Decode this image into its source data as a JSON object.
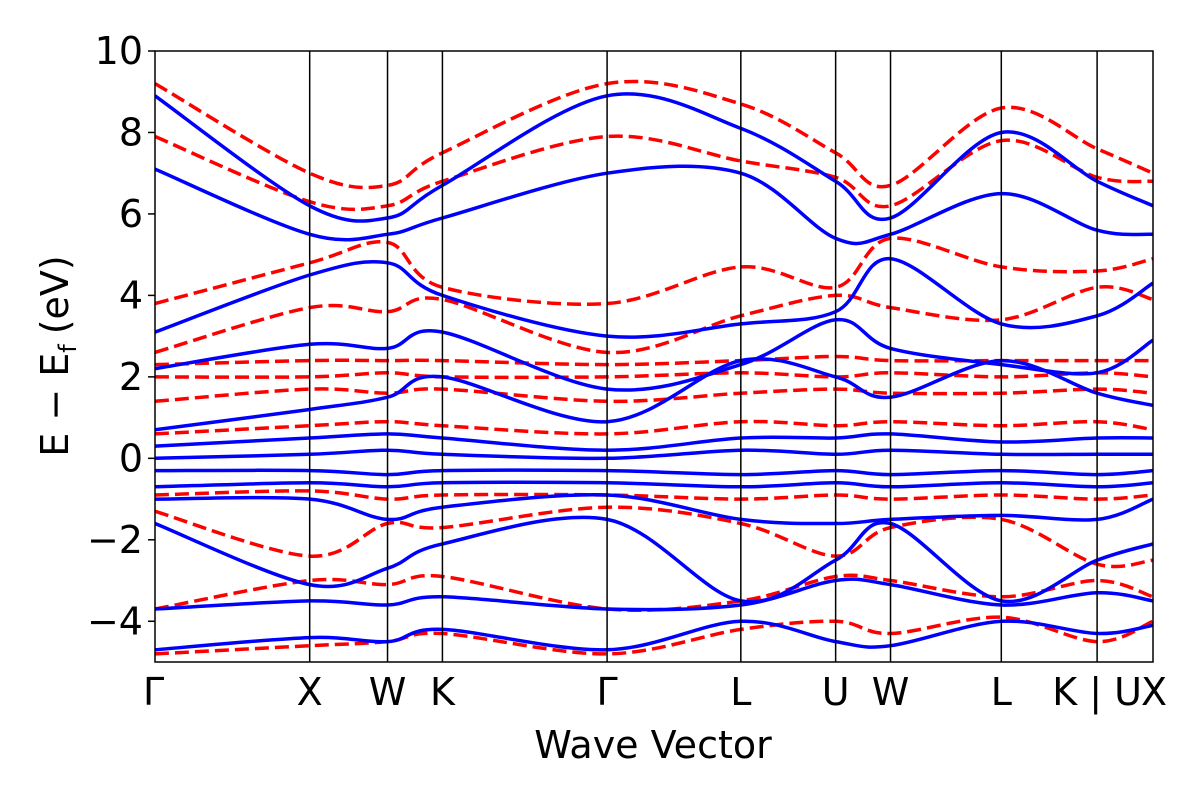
{
  "chart_data": {
    "type": "line",
    "title": "",
    "xlabel": "Wave Vector",
    "ylabel_main": "E − E",
    "ylabel_sub": "f",
    "ylabel_unit": "(eV)",
    "ylim": [
      -5,
      10
    ],
    "yticks": [
      {
        "value": 10,
        "label": "10"
      },
      {
        "value": 8,
        "label": "8"
      },
      {
        "value": 6,
        "label": "6"
      },
      {
        "value": 4,
        "label": "4"
      },
      {
        "value": 2,
        "label": "2"
      },
      {
        "value": 0,
        "label": "0"
      },
      {
        "value": -2,
        "label": "−2"
      },
      {
        "value": -4,
        "label": "−4"
      }
    ],
    "kpoints": [
      {
        "label": "Γ",
        "x": 0.0
      },
      {
        "label": "X",
        "x": 0.155
      },
      {
        "label": "W",
        "x": 0.233
      },
      {
        "label": "K",
        "x": 0.288
      },
      {
        "label": "Γ",
        "x": 0.453
      },
      {
        "label": "L",
        "x": 0.587
      },
      {
        "label": "U",
        "x": 0.682
      },
      {
        "label": "W",
        "x": 0.737
      },
      {
        "label": "L",
        "x": 0.848
      },
      {
        "label": "K | U",
        "x": 0.944
      },
      {
        "label": "X",
        "x": 1.0
      }
    ],
    "series": [
      {
        "style": "solid",
        "color": "#0000ff",
        "bands": [
          {
            "x": [
              0,
              0.155,
              0.233,
              0.288,
              0.453,
              0.587,
              0.682,
              0.737,
              0.848,
              0.944,
              1.0
            ],
            "y": [
              8.9,
              6.2,
              5.9,
              6.7,
              8.9,
              8.1,
              6.8,
              5.9,
              8.0,
              6.8,
              6.2
            ]
          },
          {
            "x": [
              0,
              0.155,
              0.233,
              0.288,
              0.453,
              0.587,
              0.682,
              0.737,
              0.848,
              0.944,
              1.0
            ],
            "y": [
              7.1,
              5.5,
              5.5,
              5.9,
              7.0,
              7.0,
              5.4,
              5.5,
              6.5,
              5.6,
              5.5
            ]
          },
          {
            "x": [
              0,
              0.155,
              0.233,
              0.288,
              0.453,
              0.587,
              0.682,
              0.737,
              0.848,
              0.944,
              1.0
            ],
            "y": [
              3.1,
              4.5,
              4.8,
              4.0,
              3.0,
              3.3,
              3.6,
              4.9,
              3.3,
              3.5,
              4.3
            ]
          },
          {
            "x": [
              0,
              0.155,
              0.233,
              0.288,
              0.453,
              0.587,
              0.682,
              0.737,
              0.848,
              0.944,
              1.0
            ],
            "y": [
              2.2,
              2.8,
              2.7,
              3.1,
              1.7,
              2.3,
              3.4,
              2.7,
              2.3,
              2.1,
              2.9
            ]
          },
          {
            "x": [
              0,
              0.155,
              0.233,
              0.288,
              0.453,
              0.587,
              0.682,
              0.737,
              0.848,
              0.944,
              1.0
            ],
            "y": [
              0.7,
              1.2,
              1.5,
              2.0,
              0.9,
              2.4,
              2.0,
              1.5,
              2.4,
              1.6,
              1.3
            ]
          },
          {
            "x": [
              0,
              0.155,
              0.233,
              0.288,
              0.453,
              0.587,
              0.682,
              0.737,
              0.848,
              0.944,
              1.0
            ],
            "y": [
              0.3,
              0.5,
              0.6,
              0.5,
              0.2,
              0.5,
              0.5,
              0.6,
              0.4,
              0.5,
              0.5
            ]
          },
          {
            "x": [
              0,
              0.155,
              0.233,
              0.288,
              0.453,
              0.587,
              0.682,
              0.737,
              0.848,
              0.944,
              1.0
            ],
            "y": [
              0.0,
              0.1,
              0.2,
              0.1,
              0.0,
              0.2,
              0.1,
              0.2,
              0.1,
              0.1,
              0.1
            ]
          },
          {
            "x": [
              0,
              0.155,
              0.233,
              0.288,
              0.453,
              0.587,
              0.682,
              0.737,
              0.848,
              0.944,
              1.0
            ],
            "y": [
              -0.3,
              -0.3,
              -0.4,
              -0.3,
              -0.3,
              -0.4,
              -0.3,
              -0.4,
              -0.3,
              -0.4,
              -0.3
            ]
          },
          {
            "x": [
              0,
              0.155,
              0.233,
              0.288,
              0.453,
              0.587,
              0.682,
              0.737,
              0.848,
              0.944,
              1.0
            ],
            "y": [
              -0.7,
              -0.6,
              -0.7,
              -0.6,
              -0.6,
              -0.7,
              -0.6,
              -0.7,
              -0.6,
              -0.7,
              -0.6
            ]
          },
          {
            "x": [
              0,
              0.155,
              0.233,
              0.288,
              0.453,
              0.587,
              0.682,
              0.737,
              0.848,
              0.944,
              1.0
            ],
            "y": [
              -1.0,
              -1.0,
              -1.5,
              -1.2,
              -0.9,
              -1.5,
              -1.6,
              -1.5,
              -1.4,
              -1.5,
              -1.0
            ]
          },
          {
            "x": [
              0,
              0.155,
              0.233,
              0.288,
              0.453,
              0.587,
              0.682,
              0.737,
              0.848,
              0.944,
              1.0
            ],
            "y": [
              -1.6,
              -3.1,
              -2.7,
              -2.1,
              -1.5,
              -3.5,
              -2.5,
              -1.6,
              -3.5,
              -2.5,
              -2.1
            ]
          },
          {
            "x": [
              0,
              0.155,
              0.233,
              0.288,
              0.453,
              0.587,
              0.682,
              0.737,
              0.848,
              0.944,
              1.0
            ],
            "y": [
              -3.7,
              -3.5,
              -3.6,
              -3.4,
              -3.7,
              -3.6,
              -3.0,
              -3.1,
              -3.6,
              -3.3,
              -3.5
            ]
          },
          {
            "x": [
              0,
              0.155,
              0.233,
              0.288,
              0.453,
              0.587,
              0.682,
              0.737,
              0.848,
              0.944,
              1.0
            ],
            "y": [
              -4.7,
              -4.4,
              -4.5,
              -4.2,
              -4.7,
              -4.0,
              -4.5,
              -4.6,
              -4.0,
              -4.3,
              -4.1
            ]
          }
        ]
      },
      {
        "style": "dashed",
        "color": "#ff0000",
        "bands": [
          {
            "x": [
              0,
              0.155,
              0.233,
              0.288,
              0.453,
              0.587,
              0.682,
              0.737,
              0.848,
              0.944,
              1.0
            ],
            "y": [
              9.2,
              7.0,
              6.7,
              7.5,
              9.2,
              8.7,
              7.5,
              6.7,
              8.6,
              7.6,
              7.0
            ]
          },
          {
            "x": [
              0,
              0.155,
              0.233,
              0.288,
              0.453,
              0.587,
              0.682,
              0.737,
              0.848,
              0.944,
              1.0
            ],
            "y": [
              7.9,
              6.3,
              6.2,
              6.8,
              7.9,
              7.3,
              6.9,
              6.2,
              7.8,
              6.9,
              6.8
            ]
          },
          {
            "x": [
              0,
              0.155,
              0.233,
              0.288,
              0.453,
              0.587,
              0.682,
              0.737,
              0.848,
              0.944,
              1.0
            ],
            "y": [
              3.8,
              4.8,
              5.3,
              4.2,
              3.8,
              4.7,
              4.2,
              5.4,
              4.7,
              4.6,
              4.9
            ]
          },
          {
            "x": [
              0,
              0.155,
              0.233,
              0.288,
              0.453,
              0.587,
              0.682,
              0.737,
              0.848,
              0.944,
              1.0
            ],
            "y": [
              2.6,
              3.7,
              3.6,
              3.9,
              2.6,
              3.5,
              4.0,
              3.7,
              3.4,
              4.2,
              3.9
            ]
          },
          {
            "x": [
              0,
              0.155,
              0.233,
              0.288,
              0.453,
              0.587,
              0.682,
              0.737,
              0.848,
              0.944,
              1.0
            ],
            "y": [
              2.3,
              2.4,
              2.4,
              2.4,
              2.3,
              2.4,
              2.5,
              2.4,
              2.4,
              2.4,
              2.4
            ]
          },
          {
            "x": [
              0,
              0.155,
              0.233,
              0.288,
              0.453,
              0.587,
              0.682,
              0.737,
              0.848,
              0.944,
              1.0
            ],
            "y": [
              2.0,
              2.0,
              2.1,
              2.0,
              2.0,
              2.1,
              2.0,
              2.1,
              2.0,
              2.1,
              2.0
            ]
          },
          {
            "x": [
              0,
              0.155,
              0.233,
              0.288,
              0.453,
              0.587,
              0.682,
              0.737,
              0.848,
              0.944,
              1.0
            ],
            "y": [
              1.4,
              1.7,
              1.6,
              1.7,
              1.4,
              1.6,
              1.7,
              1.6,
              1.6,
              1.7,
              1.6
            ]
          },
          {
            "x": [
              0,
              0.155,
              0.233,
              0.288,
              0.453,
              0.587,
              0.682,
              0.737,
              0.848,
              0.944,
              1.0
            ],
            "y": [
              0.6,
              0.8,
              0.9,
              0.8,
              0.6,
              0.9,
              0.8,
              0.9,
              0.8,
              0.9,
              0.7
            ]
          },
          {
            "x": [
              0,
              0.155,
              0.233,
              0.288,
              0.453,
              0.587,
              0.682,
              0.737,
              0.848,
              0.944,
              1.0
            ],
            "y": [
              -0.9,
              -0.8,
              -1.0,
              -0.9,
              -0.9,
              -1.0,
              -0.9,
              -1.0,
              -0.9,
              -1.0,
              -0.9
            ]
          },
          {
            "x": [
              0,
              0.155,
              0.233,
              0.288,
              0.453,
              0.587,
              0.682,
              0.737,
              0.848,
              0.944,
              1.0
            ],
            "y": [
              -1.3,
              -2.4,
              -1.6,
              -1.7,
              -1.2,
              -1.6,
              -2.4,
              -1.7,
              -1.5,
              -2.6,
              -2.5
            ]
          },
          {
            "x": [
              0,
              0.155,
              0.233,
              0.288,
              0.453,
              0.587,
              0.682,
              0.737,
              0.848,
              0.944,
              1.0
            ],
            "y": [
              -3.7,
              -3.0,
              -3.1,
              -2.9,
              -3.7,
              -3.5,
              -2.9,
              -3.0,
              -3.4,
              -3.0,
              -3.4
            ]
          },
          {
            "x": [
              0,
              0.155,
              0.233,
              0.288,
              0.453,
              0.587,
              0.682,
              0.737,
              0.848,
              0.944,
              1.0
            ],
            "y": [
              -4.8,
              -4.6,
              -4.5,
              -4.3,
              -4.8,
              -4.2,
              -4.0,
              -4.3,
              -3.9,
              -4.5,
              -4.0
            ]
          }
        ]
      }
    ]
  }
}
